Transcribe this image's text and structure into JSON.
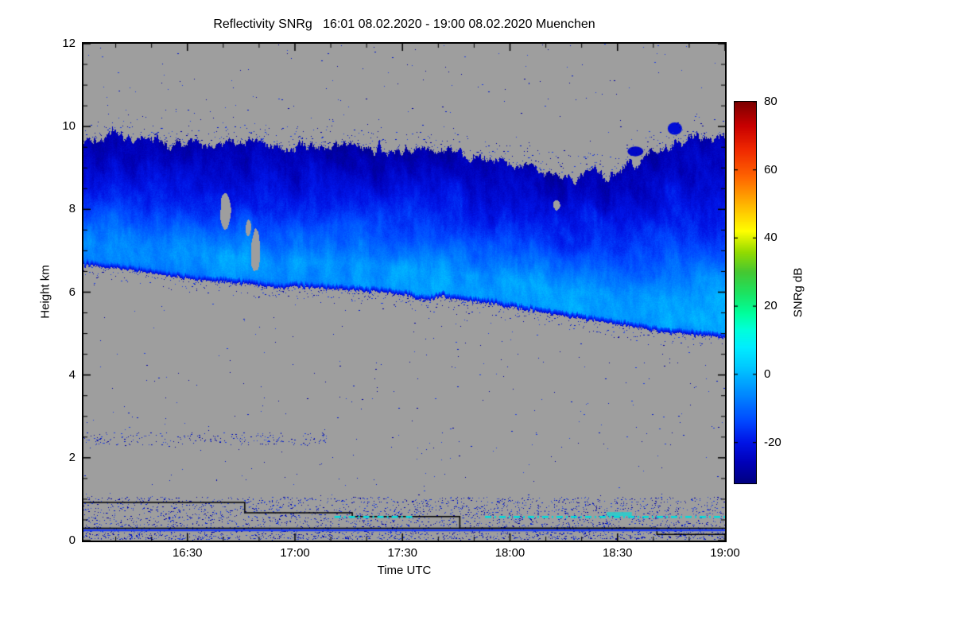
{
  "title": "Reflectivity SNRg   16:01 08.02.2020 - 19:00 08.02.2020 Muenchen",
  "site": "Muenchen",
  "date": "08.02.2020",
  "axes": {
    "x": {
      "label": "Time UTC",
      "start_utc": "16:01",
      "end_utc": "19:00",
      "range_minutes": [
        0,
        179
      ],
      "minor_tick_minutes": 10,
      "ticks": [
        {
          "label": "16:30",
          "minute": 29
        },
        {
          "label": "17:00",
          "minute": 59
        },
        {
          "label": "17:30",
          "minute": 89
        },
        {
          "label": "18:00",
          "minute": 119
        },
        {
          "label": "18:30",
          "minute": 149
        },
        {
          "label": "19:00",
          "minute": 179
        }
      ]
    },
    "y": {
      "label": "Height km",
      "range_km": [
        0,
        12
      ],
      "ticks": [
        {
          "label": "0",
          "km": 0
        },
        {
          "label": "2",
          "km": 2
        },
        {
          "label": "4",
          "km": 4
        },
        {
          "label": "6",
          "km": 6
        },
        {
          "label": "8",
          "km": 8
        },
        {
          "label": "10",
          "km": 10
        },
        {
          "label": "12",
          "km": 12
        }
      ]
    }
  },
  "colorbar": {
    "label": "SNRg dB",
    "range_db": [
      -32,
      80
    ],
    "ticks": [
      {
        "label": "80",
        "value": 80
      },
      {
        "label": "60",
        "value": 60
      },
      {
        "label": "40",
        "value": 40
      },
      {
        "label": "20",
        "value": 20
      },
      {
        "label": "0",
        "value": 0
      },
      {
        "label": "-20",
        "value": -20
      }
    ],
    "colormap_stops": [
      [
        -32,
        "#000080"
      ],
      [
        -26,
        "#0000b8"
      ],
      [
        -20,
        "#0014e6"
      ],
      [
        -14,
        "#0046ff"
      ],
      [
        -8,
        "#0078ff"
      ],
      [
        -3,
        "#00a0ff"
      ],
      [
        2,
        "#00c8ff"
      ],
      [
        8,
        "#00eeff"
      ],
      [
        13,
        "#00ffdc"
      ],
      [
        18,
        "#00ff9b"
      ],
      [
        24,
        "#1ee360"
      ],
      [
        30,
        "#46c832"
      ],
      [
        36,
        "#96dc00"
      ],
      [
        42,
        "#ffff00"
      ],
      [
        50,
        "#ffb400"
      ],
      [
        58,
        "#ff6400"
      ],
      [
        66,
        "#f02800"
      ],
      [
        73,
        "#c80000"
      ],
      [
        80,
        "#7d0000"
      ]
    ]
  },
  "colors": {
    "background": "#ffffff",
    "no_signal_gray": "#9e9e9e",
    "axis": "#000000",
    "speckle": [
      "#0000a0",
      "#0018c8",
      "#2040e0"
    ]
  },
  "chart_data": {
    "type": "heatmap",
    "title": "Reflectivity SNRg   16:01 08.02.2020 - 19:00 08.02.2020 Muenchen",
    "xlabel": "Time UTC",
    "ylabel": "Height km",
    "value_label": "SNRg dB",
    "x_range_utc": [
      "16:01",
      "19:00"
    ],
    "x_range_minutes": [
      0,
      179
    ],
    "ylim_km": [
      0,
      12
    ],
    "colorbar_range_db": [
      -32,
      80
    ],
    "colorbar_tick_values": [
      80,
      60,
      40,
      20,
      0,
      -20
    ],
    "background": "no-signal gray outside cloud",
    "cloud_layer": {
      "description": "Descending mid-level cloud band; SNRg about -28 to +4 dB, darkest blue at cloud top, brightest cyan near cloud base and toward later times",
      "top_km": [
        [
          0,
          9.55
        ],
        [
          6,
          9.7
        ],
        [
          10,
          9.85
        ],
        [
          14,
          9.65
        ],
        [
          20,
          9.7
        ],
        [
          26,
          9.55
        ],
        [
          32,
          9.6
        ],
        [
          40,
          9.55
        ],
        [
          48,
          9.65
        ],
        [
          56,
          9.5
        ],
        [
          64,
          9.55
        ],
        [
          72,
          9.5
        ],
        [
          80,
          9.5
        ],
        [
          88,
          9.45
        ],
        [
          96,
          9.4
        ],
        [
          104,
          9.35
        ],
        [
          112,
          9.25
        ],
        [
          119,
          9.15
        ],
        [
          125,
          9.0
        ],
        [
          131,
          8.85
        ],
        [
          137,
          8.75
        ],
        [
          143,
          8.95
        ],
        [
          148,
          8.8
        ],
        [
          152,
          9.05
        ],
        [
          158,
          9.3
        ],
        [
          164,
          9.5
        ],
        [
          170,
          9.7
        ],
        [
          179,
          9.8
        ]
      ],
      "base_km": [
        [
          0,
          6.65
        ],
        [
          8,
          6.6
        ],
        [
          16,
          6.5
        ],
        [
          24,
          6.4
        ],
        [
          32,
          6.3
        ],
        [
          40,
          6.25
        ],
        [
          48,
          6.2
        ],
        [
          54,
          6.1
        ],
        [
          60,
          6.15
        ],
        [
          68,
          6.1
        ],
        [
          76,
          6.05
        ],
        [
          84,
          6.0
        ],
        [
          90,
          5.95
        ],
        [
          95,
          5.8
        ],
        [
          100,
          5.9
        ],
        [
          106,
          5.8
        ],
        [
          112,
          5.75
        ],
        [
          119,
          5.65
        ],
        [
          126,
          5.55
        ],
        [
          133,
          5.45
        ],
        [
          140,
          5.35
        ],
        [
          147,
          5.25
        ],
        [
          154,
          5.15
        ],
        [
          161,
          5.05
        ],
        [
          168,
          5.0
        ],
        [
          174,
          4.95
        ],
        [
          179,
          4.9
        ]
      ],
      "value_profile_u_db": [
        [
          0,
          -10
        ],
        [
          0.06,
          -7
        ],
        [
          0.18,
          -6
        ],
        [
          0.3,
          -10
        ],
        [
          0.5,
          -16
        ],
        [
          0.7,
          -21
        ],
        [
          0.85,
          -25
        ],
        [
          1,
          -27
        ]
      ],
      "late_time_brightening_db": 6,
      "gray_gaps": [
        {
          "t": 39.7,
          "h": 7.95,
          "rt": 1.5,
          "rh": 0.42
        },
        {
          "t": 46,
          "h": 7.55,
          "rt": 0.7,
          "rh": 0.2
        },
        {
          "t": 48,
          "h": 7.0,
          "rt": 1.3,
          "rh": 0.5
        },
        {
          "t": 132,
          "h": 8.1,
          "rt": 1.0,
          "rh": 0.12
        }
      ],
      "detached_patches": [
        {
          "t": 154,
          "h": 9.4,
          "rt": 2.2,
          "rh": 0.12,
          "db": -24
        },
        {
          "t": 165,
          "h": 9.95,
          "rt": 2.0,
          "rh": 0.15,
          "db": -22
        }
      ]
    },
    "surface_lines": [
      {
        "name": "step-line",
        "color": "#000000",
        "width": 1.5,
        "points": [
          [
            0,
            0.92
          ],
          [
            45,
            0.92
          ],
          [
            45,
            0.67
          ],
          [
            75,
            0.67
          ],
          [
            75,
            0.58
          ],
          [
            105,
            0.58
          ],
          [
            105,
            0.3
          ],
          [
            179,
            0.3
          ]
        ]
      },
      {
        "name": "baseline-black",
        "color": "#000000",
        "width": 1.5,
        "points": [
          [
            0,
            0.3
          ],
          [
            160,
            0.3
          ],
          [
            160,
            0.15
          ],
          [
            179,
            0.15
          ]
        ]
      },
      {
        "name": "baseline-blue",
        "color": "#1e3cf0",
        "width": 2.5,
        "points": [
          [
            0,
            0.25
          ],
          [
            179,
            0.25
          ]
        ]
      },
      {
        "name": "cyan-dashdot",
        "color": "#00dcdc",
        "width": 2.5,
        "style": "dashdot",
        "height_km": 0.57,
        "segments": [
          [
            70,
            92
          ],
          [
            112,
            179
          ]
        ]
      },
      {
        "name": "cyan-patch",
        "color": "#35c8c8",
        "width": 5,
        "points": [
          [
            146,
            0.64
          ],
          [
            153,
            0.64
          ]
        ]
      }
    ],
    "speckle_noise": {
      "description": "scattered blue noise pixels over gray background",
      "regions": [
        {
          "name": "global",
          "count": 800,
          "t": [
            0,
            179
          ],
          "h": [
            0,
            12
          ]
        },
        {
          "name": "boundary-layer",
          "count": 3200,
          "t": [
            0,
            179
          ],
          "h": [
            0.03,
            1.05
          ]
        },
        {
          "name": "left-trail-2.5km",
          "count": 220,
          "t": [
            0,
            68
          ],
          "h": [
            2.3,
            2.6
          ]
        }
      ]
    }
  }
}
